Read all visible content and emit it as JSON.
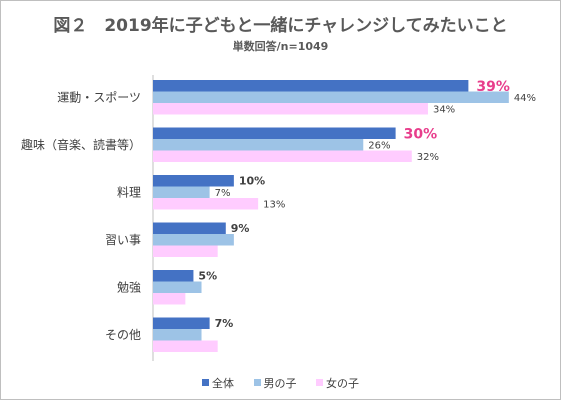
{
  "chart_data": {
    "type": "bar",
    "orientation": "horizontal",
    "title": "図２　2019年に子どもと一緒にチャレンジしてみたいこと",
    "subtitle": "単数回答/n=1049",
    "categories": [
      "運動・スポーツ",
      "趣味（音楽、読書等）",
      "料理",
      "習い事",
      "勉強",
      "その他"
    ],
    "series": [
      {
        "name": "全体",
        "color": "#4472c4",
        "values": [
          39,
          30,
          10,
          9,
          5,
          7
        ]
      },
      {
        "name": "男の子",
        "color": "#9dc3e6",
        "values": [
          44,
          26,
          7,
          10,
          6,
          6
        ]
      },
      {
        "name": "女の子",
        "color": "#ffccff",
        "values": [
          34,
          32,
          13,
          8,
          4,
          8
        ]
      }
    ],
    "data_labels": [
      [
        "39%",
        "44%",
        "34%"
      ],
      [
        "30%",
        "26%",
        "32%"
      ],
      [
        "10%",
        "7%",
        "13%"
      ],
      [
        "9%",
        "",
        ""
      ],
      [
        "5%",
        "",
        ""
      ],
      [
        "7%",
        "",
        ""
      ]
    ],
    "highlight_color": "#e83e8c",
    "xlim": [
      0,
      46
    ],
    "legend_position": "bottom",
    "grid": false
  }
}
